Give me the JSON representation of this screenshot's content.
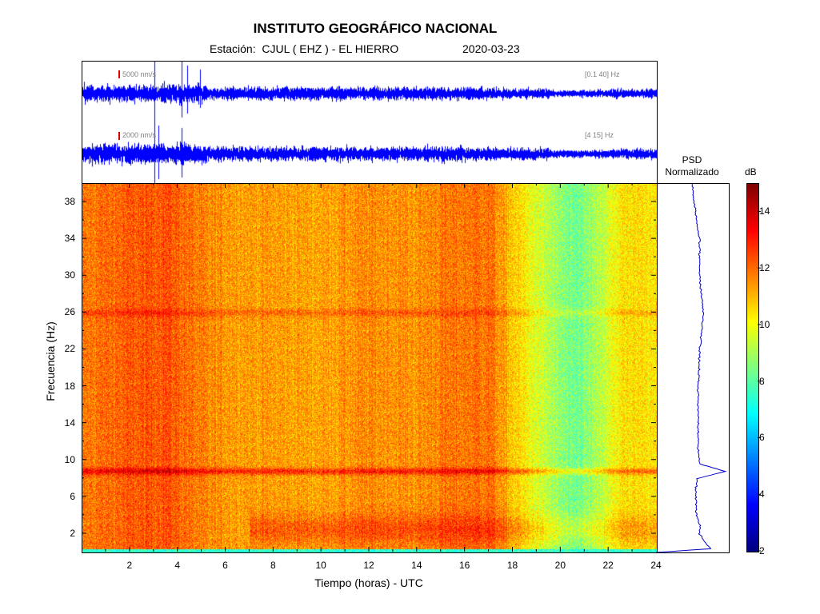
{
  "header": {
    "title": "INSTITUTO GEOGRÁFICO NACIONAL",
    "station": "Estación:  CJUL ( EHZ ) - EL HIERRO",
    "date": "2020-03-23"
  },
  "traces": [
    {
      "scale_label": "5000 nm/s",
      "band": "[0.1 40] Hz"
    },
    {
      "scale_label": "2000 nm/s",
      "band": "[4 15] Hz"
    }
  ],
  "psd": {
    "title_line1": "PSD",
    "title_line2": "Normalizado"
  },
  "colorbar": {
    "label": "dB",
    "min": 2,
    "max": 15,
    "ticks": [
      "2",
      "4",
      "6",
      "8",
      "10",
      "12",
      "14"
    ]
  },
  "colors": {
    "trace": "#0000ff",
    "scale_bar": "#e00000"
  },
  "chart_data": {
    "type": "heatmap",
    "xlabel": "Tiempo (horas) - UTC",
    "ylabel": "Frecuencia (Hz)",
    "xlim": [
      0,
      24
    ],
    "ylim": [
      0,
      40
    ],
    "x_ticks": [
      "2",
      "4",
      "6",
      "8",
      "10",
      "12",
      "14",
      "16",
      "18",
      "20",
      "22",
      "24"
    ],
    "y_ticks": [
      "2",
      "6",
      "10",
      "14",
      "18",
      "22",
      "26",
      "30",
      "34",
      "38"
    ],
    "colormap": "jet",
    "value_unit": "dB",
    "value_range": [
      2,
      15
    ],
    "time_profile": {
      "hours": [
        0,
        2,
        3.5,
        5.2,
        7,
        10,
        12,
        14,
        15,
        17,
        18,
        19.5,
        20.5,
        21.5,
        22.5,
        24
      ],
      "level_dB": [
        11.8,
        12.2,
        12.4,
        11.6,
        11.4,
        11.3,
        11.6,
        11.5,
        11.8,
        12.0,
        10.8,
        9.2,
        8.2,
        9.0,
        10.4,
        10.5
      ]
    },
    "frequency_features": [
      {
        "freq_hz": 8.8,
        "type": "persistent band",
        "level_dB": 13
      },
      {
        "freq_hz": 26,
        "type": "weak band",
        "level_dB": 12
      },
      {
        "freq_hz": 2.5,
        "type": "elevated low-frequency energy",
        "hours": [
          7,
          24
        ]
      }
    ],
    "psd_normalized": {
      "freq_hz": [
        0,
        0.4,
        1,
        2,
        3,
        4,
        5,
        6,
        7,
        8,
        8.8,
        9.6,
        11,
        14,
        18,
        22,
        26,
        30,
        34,
        38,
        40
      ],
      "value": [
        0.0,
        0.75,
        0.68,
        0.6,
        0.6,
        0.56,
        0.55,
        0.55,
        0.55,
        0.56,
        0.95,
        0.6,
        0.58,
        0.58,
        0.58,
        0.6,
        0.65,
        0.6,
        0.6,
        0.52,
        0.5
      ]
    }
  }
}
